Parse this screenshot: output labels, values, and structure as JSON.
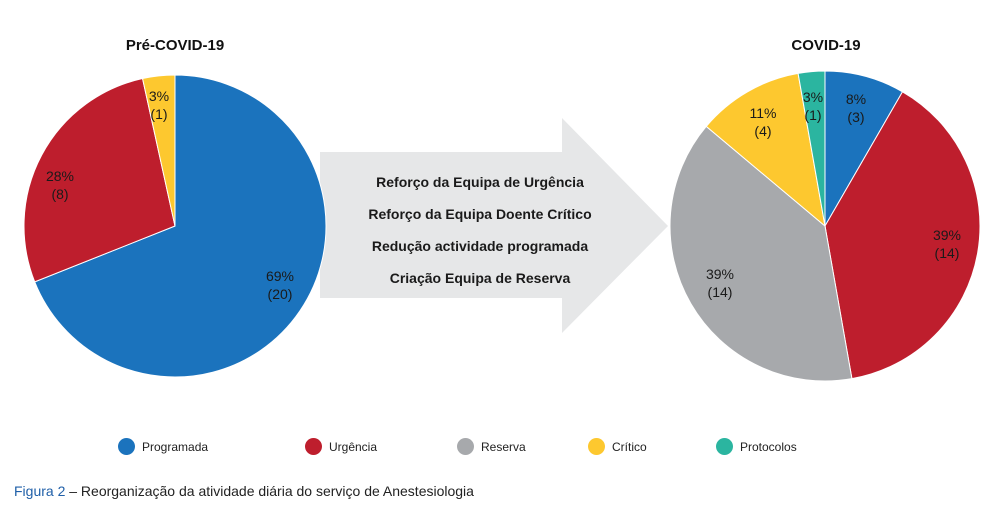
{
  "chart_data": [
    {
      "type": "pie",
      "title": "Pré-COVID-19",
      "slices": [
        {
          "name": "Programada",
          "value": 20,
          "percent": "69%",
          "count": "(20)",
          "color": "#1b73bd"
        },
        {
          "name": "Urgência",
          "value": 8,
          "percent": "28%",
          "count": "(8)",
          "color": "#be1e2d"
        },
        {
          "name": "Crítico",
          "value": 1,
          "percent": "3%",
          "count": "(1)",
          "color": "#fdc82f"
        }
      ]
    },
    {
      "type": "pie",
      "title": "COVID-19",
      "slices": [
        {
          "name": "Programada",
          "value": 3,
          "percent": "8%",
          "count": "(3)",
          "color": "#1b73bd"
        },
        {
          "name": "Urgência",
          "value": 14,
          "percent": "39%",
          "count": "(14)",
          "color": "#be1e2d"
        },
        {
          "name": "Reserva",
          "value": 14,
          "percent": "39%",
          "count": "(14)",
          "color": "#a7a9ac"
        },
        {
          "name": "Crítico",
          "value": 4,
          "percent": "11%",
          "count": "(4)",
          "color": "#fdc82f"
        },
        {
          "name": "Protocolos",
          "value": 1,
          "percent": "3%",
          "count": "(1)",
          "color": "#2bb5a0"
        }
      ]
    }
  ],
  "arrow": {
    "lines": [
      "Reforço da Equipa de Urgência",
      "Reforço da Equipa Doente Crítico",
      "Redução actividade programada",
      "Criação Equipa de Reserva"
    ],
    "color": "#e6e7e8"
  },
  "legend": [
    {
      "label": "Programada",
      "color": "#1b73bd"
    },
    {
      "label": "Urgência",
      "color": "#be1e2d"
    },
    {
      "label": "Reserva",
      "color": "#a7a9ac"
    },
    {
      "label": "Crítico",
      "color": "#fdc82f"
    },
    {
      "label": "Protocolos",
      "color": "#2bb5a0"
    }
  ],
  "caption": {
    "figure": "Figura 2",
    "text": " – Reorganização da atividade diária do serviço de Anestesiologia"
  }
}
